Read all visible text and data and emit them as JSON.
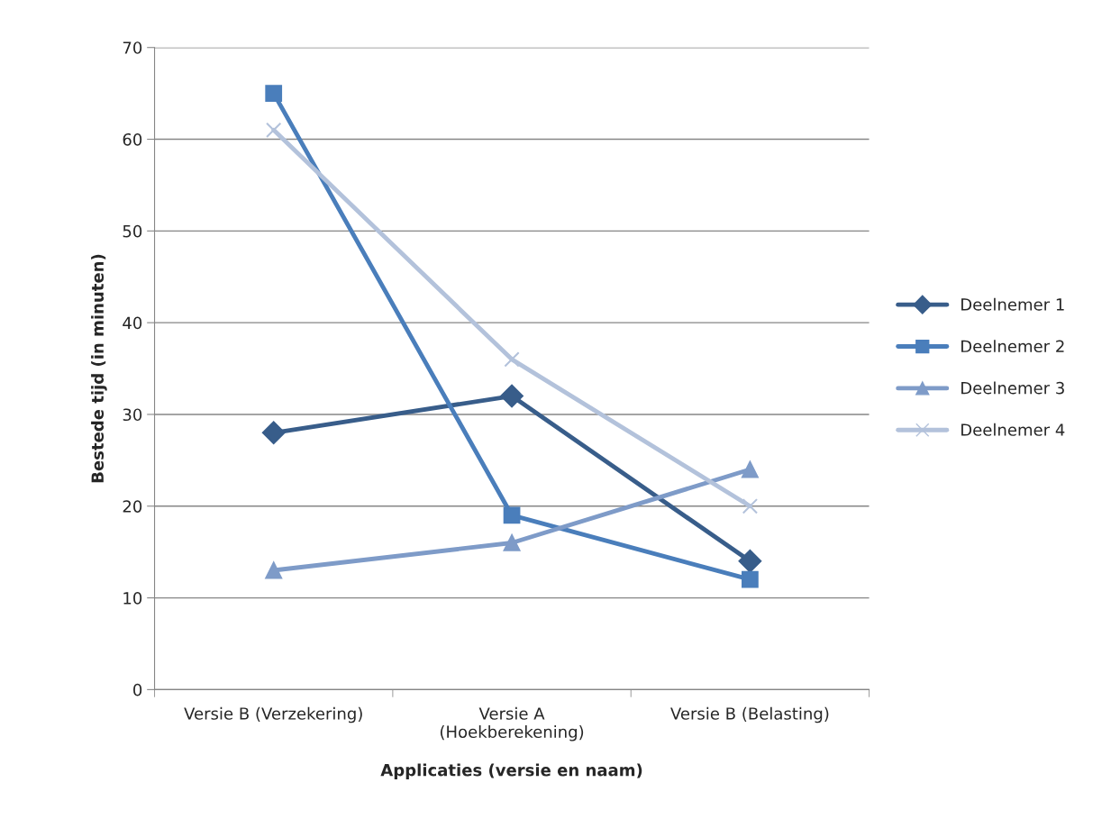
{
  "chart_data": {
    "type": "line",
    "xlabel": "Applicaties (versie en naam)",
    "ylabel": "Bestede tijd (in minuten)",
    "categories": [
      "Versie B (Verzekering)",
      "Versie A\n(Hoekberekening)",
      "Versie B (Belasting)"
    ],
    "series": [
      {
        "name": "Deelnemer 1",
        "color": "#385d8a",
        "marker": "diamond",
        "values": [
          28,
          32,
          14
        ]
      },
      {
        "name": "Deelnemer 2",
        "color": "#4a7ebb",
        "marker": "square",
        "values": [
          65,
          19,
          12
        ]
      },
      {
        "name": "Deelnemer 3",
        "color": "#7e9bc8",
        "marker": "triangle",
        "values": [
          13,
          16,
          24
        ]
      },
      {
        "name": "Deelnemer 4",
        "color": "#b3c2db",
        "marker": "cross",
        "values": [
          61,
          36,
          20
        ]
      }
    ],
    "ylim": [
      0,
      70
    ],
    "yticks": [
      0,
      10,
      20,
      30,
      40,
      50,
      60,
      70
    ],
    "grid": "y",
    "legend": "right",
    "line_style": "solid"
  }
}
